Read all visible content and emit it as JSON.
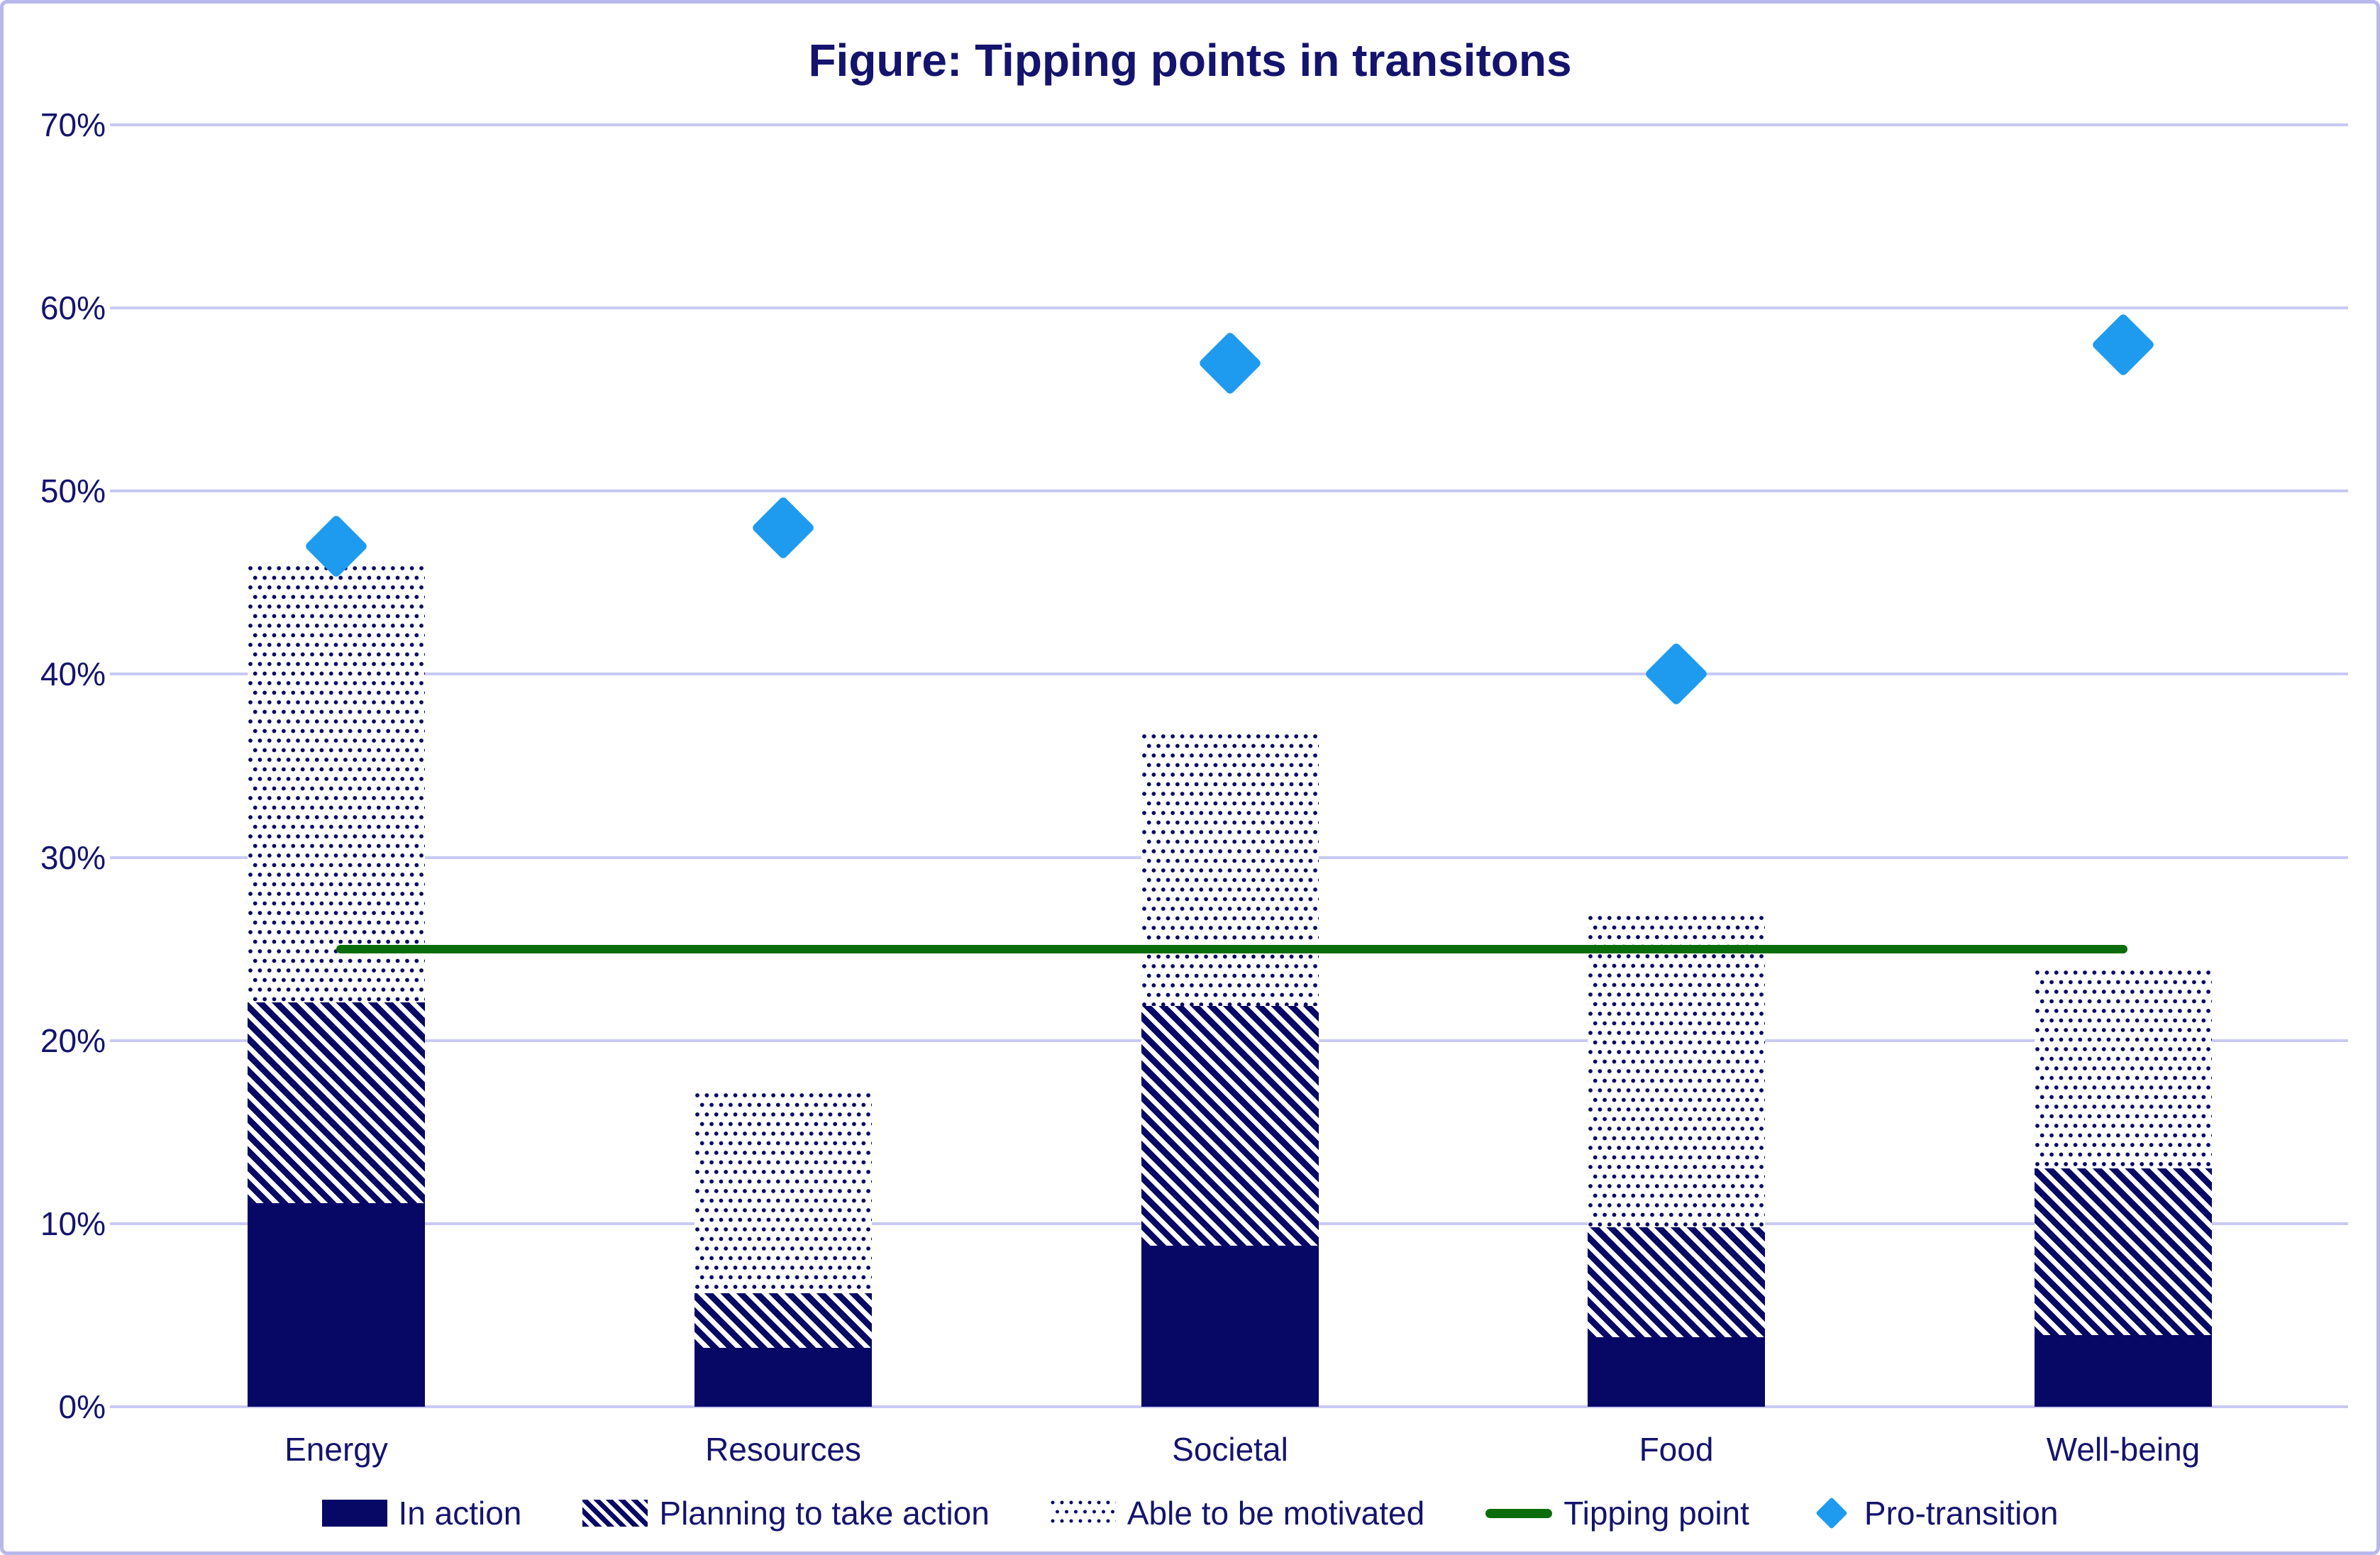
{
  "figure": {
    "title": "Figure: Tipping points in transitons"
  },
  "colors": {
    "bar_navy": "#070765",
    "text_navy": "#14146e",
    "diamond_blue": "#1e9bee",
    "tipping_green": "#0b6c0b",
    "gridline": "#c9c9f3",
    "frame_border": "#b8b8ec",
    "background": "#ffffff"
  },
  "chart_data": {
    "type": "stacked-bar with scatter overlay and reference line",
    "title": "Figure: Tipping points in transitons",
    "categories": [
      "Energy",
      "Resources",
      "Societal",
      "Food",
      "Well-being"
    ],
    "series": [
      {
        "name": "In action",
        "type": "bar-segment",
        "style": "solid",
        "values": [
          11.1,
          3.2,
          8.8,
          3.8,
          3.9
        ]
      },
      {
        "name": "Planning to take action",
        "type": "bar-segment",
        "style": "hatch",
        "values": [
          11.0,
          3.0,
          13.1,
          6.0,
          9.1
        ]
      },
      {
        "name": "Able to be motivated",
        "type": "bar-segment",
        "style": "dots",
        "values": [
          23.9,
          11.0,
          14.9,
          17.1,
          10.9
        ]
      },
      {
        "name": "Tipping point",
        "type": "reference-line",
        "style": "line",
        "value": 25
      },
      {
        "name": "Pro-transition",
        "type": "scatter",
        "style": "diamond",
        "values": [
          47,
          48,
          57,
          40,
          58
        ]
      }
    ],
    "stack_totals": [
      46.0,
      17.2,
      36.8,
      26.9,
      23.9
    ],
    "xlabel": "",
    "ylabel": "",
    "ylim": [
      0,
      70
    ],
    "yticks": [
      {
        "value": 70,
        "label": "70%"
      },
      {
        "value": 60,
        "label": "60%"
      },
      {
        "value": 50,
        "label": "50%"
      },
      {
        "value": 40,
        "label": "40%"
      },
      {
        "value": 30,
        "label": "30%"
      },
      {
        "value": 20,
        "label": "20%"
      },
      {
        "value": 10,
        "label": "10%"
      },
      {
        "value": 0,
        "label": "0%"
      }
    ],
    "grid": "horizontal",
    "legend_position": "bottom"
  },
  "legend": {
    "items": [
      {
        "label": "In action"
      },
      {
        "label": "Planning to take action"
      },
      {
        "label": "Able to be motivated"
      },
      {
        "label": "Tipping point"
      },
      {
        "label": "Pro-transition"
      }
    ]
  }
}
